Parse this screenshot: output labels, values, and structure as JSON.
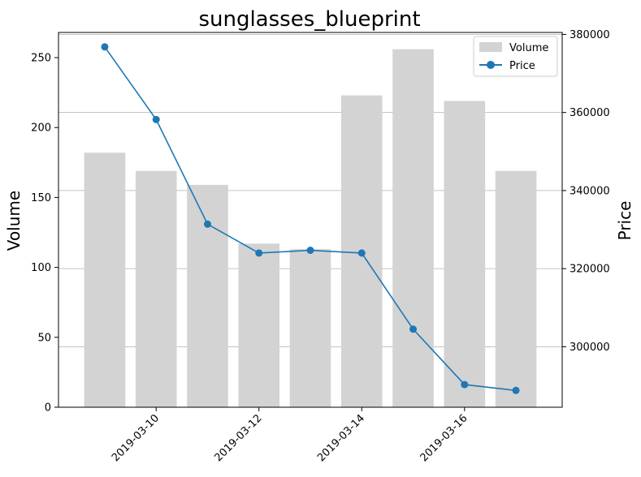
{
  "chart_data": {
    "type": "bar+line",
    "title": "sunglasses_blueprint",
    "x": [
      "2019-03-09",
      "2019-03-10",
      "2019-03-11",
      "2019-03-12",
      "2019-03-13",
      "2019-03-14",
      "2019-03-15",
      "2019-03-16",
      "2019-03-17"
    ],
    "x_tick_labels": [
      "2019-03-10",
      "2019-03-12",
      "2019-03-14",
      "2019-03-16"
    ],
    "y_left_label": "Volume",
    "y_right_label": "Price",
    "y_left_range": [
      0,
      268
    ],
    "y_right_range": [
      284500,
      380500
    ],
    "y_left_ticks": [
      0,
      50,
      100,
      150,
      200,
      250
    ],
    "y_right_ticks": [
      "300000",
      "320000",
      "340000",
      "360000",
      "380000"
    ],
    "y_right_tick_values": [
      300000,
      320000,
      340000,
      360000,
      380000
    ],
    "grid": "right-axis horizontal",
    "legend_position": "top-right",
    "series": [
      {
        "name": "Volume",
        "kind": "bar",
        "axis": "left",
        "color": "#d3d3d3",
        "values": [
          182,
          169,
          159,
          117,
          113,
          223,
          256,
          219,
          169
        ]
      },
      {
        "name": "Price",
        "kind": "line",
        "axis": "right",
        "color": "#1f77b4",
        "values": [
          376800,
          358200,
          331400,
          324000,
          324700,
          324000,
          304500,
          290300,
          288800
        ]
      }
    ]
  }
}
